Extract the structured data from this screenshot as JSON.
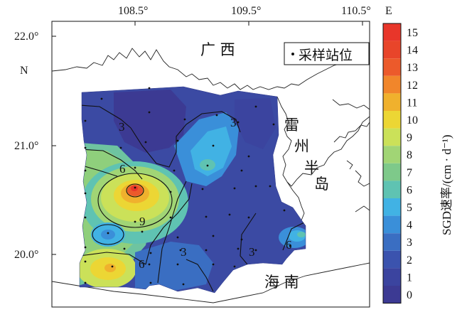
{
  "map": {
    "lon_ticks": [
      "108.5°",
      "109.5°",
      "110.5°"
    ],
    "lon_suffix": "E",
    "lat_ticks": [
      "22.0°",
      "21.0°",
      "20.0°"
    ],
    "lat_suffix": "N",
    "region_labels": {
      "guangxi": "广 西",
      "leizhou_1": "雷",
      "leizhou_2": "州",
      "leizhou_3": "半",
      "leizhou_4": "岛",
      "hainan": "海 南"
    },
    "legend": {
      "marker": "·",
      "label": "采样站位"
    },
    "contour_labels": [
      "3",
      "3",
      "6",
      "9",
      "6",
      "3",
      "3",
      "6"
    ]
  },
  "colorbar": {
    "title": "SGD速率/(cm · d⁻¹)",
    "ticks": [
      "15",
      "14",
      "13",
      "12",
      "11",
      "10",
      "9",
      "8",
      "7",
      "6",
      "5",
      "4",
      "3",
      "2",
      "1",
      "0"
    ],
    "colors": [
      "#e8362a",
      "#e8452a",
      "#ec5a2b",
      "#f1862b",
      "#f0b12d",
      "#ecd634",
      "#cbe159",
      "#a1d575",
      "#7ec98a",
      "#5fc3b2",
      "#41b2e4",
      "#3a8fd9",
      "#3a6ec2",
      "#3b53ae",
      "#3b449f",
      "#3c3a93"
    ]
  }
}
